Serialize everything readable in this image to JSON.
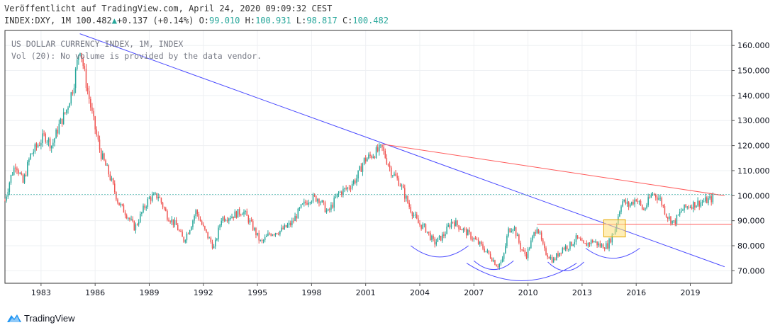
{
  "header": {
    "published": "Veröffentlicht auf TradingView.com, April 24, 2020 09:09:32 CEST",
    "symbol": "INDEX:DXY, 1M",
    "last": "100.482",
    "change_arrow": "▲",
    "change": "+0.137 (+0.14%)",
    "o_label": "O:",
    "o_value": "99.010",
    "h_label": "H:",
    "h_value": "100.931",
    "l_label": "L:",
    "l_value": "98.817",
    "c_label": "C:",
    "c_value": "100.482"
  },
  "legend": {
    "line1": "US DOLLAR CURRENCY INDEX, 1M, INDEX",
    "line2": "Vol (20): No volume is provided by the data vendor."
  },
  "footer": {
    "brand": "TradingView",
    "logo_icon": "tradingview-logo-icon"
  },
  "colors": {
    "up": "#26a69a",
    "down": "#ef5350",
    "blue_line": "#4c4cff",
    "red_line": "#ff5b5b",
    "highlight": "#ffe07a"
  },
  "chart_data": {
    "type": "candlestick",
    "x_unit": "year",
    "x_ticks": [
      "1983",
      "1986",
      "1989",
      "1992",
      "1995",
      "1998",
      "2001",
      "2004",
      "2007",
      "2010",
      "2013",
      "2016",
      "2019"
    ],
    "y_ticks": [
      "70.000",
      "80.000",
      "90.000",
      "100.000",
      "110.000",
      "120.000",
      "130.000",
      "140.000",
      "150.000",
      "160.000"
    ],
    "xlim": [
      1981.0,
      2021.3
    ],
    "ylim": [
      65.0,
      166.0
    ],
    "last_price": 100.482,
    "price_path": [
      [
        1981.0,
        98
      ],
      [
        1981.3,
        107
      ],
      [
        1981.6,
        113
      ],
      [
        1982.0,
        105
      ],
      [
        1982.4,
        116
      ],
      [
        1982.8,
        120
      ],
      [
        1983.2,
        124
      ],
      [
        1983.6,
        120
      ],
      [
        1984.0,
        128
      ],
      [
        1984.4,
        134
      ],
      [
        1984.8,
        144
      ],
      [
        1985.15,
        160
      ],
      [
        1985.5,
        145
      ],
      [
        1985.9,
        130
      ],
      [
        1986.3,
        117
      ],
      [
        1986.8,
        108
      ],
      [
        1987.3,
        97
      ],
      [
        1987.8,
        92
      ],
      [
        1988.2,
        87
      ],
      [
        1988.7,
        95
      ],
      [
        1989.0,
        99
      ],
      [
        1989.5,
        100
      ],
      [
        1990.0,
        92
      ],
      [
        1990.5,
        88
      ],
      [
        1990.9,
        82
      ],
      [
        1991.3,
        88
      ],
      [
        1991.6,
        94
      ],
      [
        1992.0,
        87
      ],
      [
        1992.6,
        79
      ],
      [
        1993.0,
        91
      ],
      [
        1993.6,
        92
      ],
      [
        1994.2,
        94
      ],
      [
        1994.7,
        88
      ],
      [
        1995.2,
        81
      ],
      [
        1995.7,
        85
      ],
      [
        1996.3,
        86
      ],
      [
        1996.9,
        89
      ],
      [
        1997.4,
        95
      ],
      [
        1997.9,
        99
      ],
      [
        1998.4,
        99
      ],
      [
        1998.9,
        93
      ],
      [
        1999.5,
        101
      ],
      [
        2000.0,
        103
      ],
      [
        2000.5,
        107
      ],
      [
        2000.9,
        114
      ],
      [
        2001.5,
        117
      ],
      [
        2001.9,
        119
      ],
      [
        2002.4,
        110
      ],
      [
        2002.9,
        105
      ],
      [
        2003.4,
        96
      ],
      [
        2003.9,
        89
      ],
      [
        2004.3,
        87
      ],
      [
        2004.8,
        81
      ],
      [
        2005.3,
        84
      ],
      [
        2005.8,
        90
      ],
      [
        2006.3,
        87
      ],
      [
        2006.8,
        84
      ],
      [
        2007.4,
        80
      ],
      [
        2007.9,
        76
      ],
      [
        2008.3,
        72
      ],
      [
        2008.6,
        74
      ],
      [
        2008.9,
        86
      ],
      [
        2009.2,
        88
      ],
      [
        2009.6,
        79
      ],
      [
        2009.9,
        76
      ],
      [
        2010.3,
        84
      ],
      [
        2010.5,
        88
      ],
      [
        2010.9,
        78
      ],
      [
        2011.4,
        74
      ],
      [
        2011.9,
        79
      ],
      [
        2012.3,
        80
      ],
      [
        2012.7,
        83
      ],
      [
        2013.1,
        80
      ],
      [
        2013.6,
        82
      ],
      [
        2014.0,
        80
      ],
      [
        2014.4,
        80
      ],
      [
        2014.8,
        86
      ],
      [
        2015.2,
        98
      ],
      [
        2015.6,
        96
      ],
      [
        2016.0,
        99
      ],
      [
        2016.4,
        94
      ],
      [
        2016.9,
        101
      ],
      [
        2017.3,
        99
      ],
      [
        2017.7,
        92
      ],
      [
        2018.1,
        89
      ],
      [
        2018.5,
        94
      ],
      [
        2018.9,
        96
      ],
      [
        2019.4,
        97
      ],
      [
        2019.9,
        98
      ],
      [
        2020.3,
        99
      ],
      [
        2020.33,
        100.482
      ]
    ],
    "annotations": [
      {
        "type": "trendline",
        "color": "blue",
        "from": [
          1985.15,
          164.7
        ],
        "to": [
          2020.9,
          71.6
        ]
      },
      {
        "type": "trendline",
        "color": "red",
        "from": [
          2002.0,
          120.5
        ],
        "to": [
          2020.9,
          100.0
        ]
      },
      {
        "type": "horizontal-line",
        "color": "red",
        "from": [
          2010.5,
          88.6
        ],
        "to": [
          2021.3,
          88.6
        ]
      },
      {
        "type": "rectangle",
        "color": "yellow",
        "from": [
          2014.2,
          83.5
        ],
        "to": [
          2015.4,
          90.4
        ]
      },
      {
        "type": "arc",
        "color": "blue",
        "from": [
          2003.5,
          80
        ],
        "to": [
          2006.7,
          80
        ],
        "depth": 4.5
      },
      {
        "type": "arc",
        "color": "blue",
        "from": [
          2006.6,
          73
        ],
        "to": [
          2012.7,
          73
        ],
        "depth": 7
      },
      {
        "type": "arc",
        "color": "blue",
        "from": [
          2007.0,
          74
        ],
        "to": [
          2009.2,
          74
        ],
        "depth": 3.5
      },
      {
        "type": "arc",
        "color": "blue",
        "from": [
          2011.1,
          73.5
        ],
        "to": [
          2013.1,
          73.5
        ],
        "depth": 3.5
      },
      {
        "type": "arc",
        "color": "blue",
        "from": [
          2013.2,
          79
        ],
        "to": [
          2016.2,
          79
        ],
        "depth": 4
      }
    ]
  }
}
